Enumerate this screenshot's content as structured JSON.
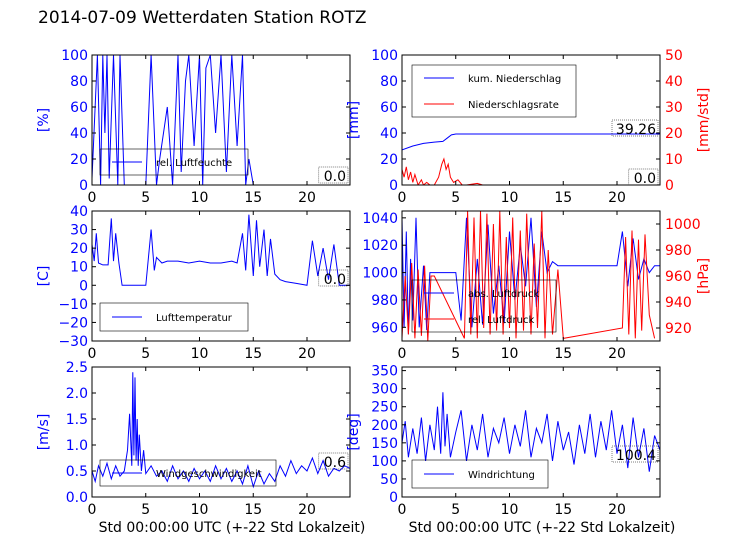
{
  "title": "2014-07-09 Wetterdaten Station ROTZ",
  "colors": {
    "primary": "#0000ff",
    "secondary": "#ff0000",
    "frame": "#000000"
  },
  "chart_data": [
    {
      "id": "humidity",
      "type": "line",
      "ylabel": "[%]",
      "xlabel": "",
      "xlim": [
        0,
        24
      ],
      "ylim": [
        0,
        100
      ],
      "xticks": [
        0,
        5,
        10,
        15,
        20
      ],
      "yticks": [
        0,
        20,
        40,
        60,
        80,
        100
      ],
      "legend": {
        "placement": "bottom-center",
        "entries": [
          {
            "label": "rel. Luftfeuchte",
            "color": "#0000ff"
          }
        ]
      },
      "annotation": "0.0",
      "series": [
        {
          "name": "rel. Luftfeuchte",
          "color": "#0000ff",
          "x": [
            0,
            0.5,
            0.8,
            1,
            1.2,
            1.4,
            1.6,
            2,
            2.4,
            2.6,
            3,
            5,
            5.5,
            6,
            6.3,
            7,
            7.5,
            8,
            8.3,
            8.7,
            9,
            9.5,
            10,
            10.3,
            10.6,
            11,
            11.5,
            12,
            12.5,
            13,
            13.5,
            14,
            14.3,
            14.6,
            15,
            20,
            24
          ],
          "y": [
            5,
            100,
            0,
            100,
            40,
            100,
            5,
            100,
            0,
            100,
            0,
            0,
            100,
            0,
            20,
            60,
            0,
            100,
            10,
            80,
            100,
            30,
            100,
            0,
            90,
            100,
            40,
            100,
            10,
            100,
            30,
            100,
            0,
            20,
            0,
            0,
            0
          ]
        }
      ]
    },
    {
      "id": "precipitation",
      "type": "line",
      "ylabel": "[mm]",
      "ylabel2": "[mm/std]",
      "xlabel": "",
      "xlim": [
        0,
        24
      ],
      "ylim": [
        0,
        100
      ],
      "ylim2": [
        0,
        50
      ],
      "xticks": [
        0,
        5,
        10,
        15,
        20
      ],
      "yticks": [
        0,
        20,
        40,
        60,
        80,
        100
      ],
      "yticks2": [
        0,
        10,
        20,
        30,
        40,
        50
      ],
      "legend": {
        "placement": "top-left",
        "entries": [
          {
            "label": "kum. Niederschlag",
            "color": "#0000ff"
          },
          {
            "label": "Niederschlagsrate",
            "color": "#ff0000"
          }
        ]
      },
      "annotations": [
        "39.26",
        "0.0"
      ],
      "series": [
        {
          "name": "kum. Niederschlag",
          "axis": "left",
          "color": "#0000ff",
          "x": [
            0,
            1,
            2,
            3,
            3.8,
            4.2,
            4.6,
            5,
            6,
            8,
            24
          ],
          "y": [
            27,
            30,
            32,
            33,
            33.5,
            36,
            38.5,
            39.2,
            39.26,
            39.26,
            39.26
          ]
        },
        {
          "name": "Niederschlagsrate",
          "axis": "right",
          "color": "#ff0000",
          "x": [
            0,
            0.2,
            0.4,
            0.6,
            0.8,
            1,
            1.2,
            1.5,
            1.8,
            2,
            2.3,
            2.6,
            3,
            3.4,
            3.7,
            3.9,
            4.1,
            4.3,
            4.5,
            4.8,
            5.2,
            5.6,
            6,
            7,
            7.5,
            8,
            24
          ],
          "y": [
            6,
            3,
            7,
            2,
            5,
            1,
            4,
            0,
            2,
            0,
            1,
            0,
            0,
            3,
            8,
            10,
            6,
            8,
            3,
            1,
            2,
            0,
            0,
            0.6,
            0,
            0,
            0
          ]
        }
      ]
    },
    {
      "id": "temperature",
      "type": "line",
      "ylabel": "[C]",
      "xlabel": "",
      "xlim": [
        0,
        24
      ],
      "ylim": [
        -30,
        40
      ],
      "xticks": [
        0,
        5,
        10,
        15,
        20
      ],
      "yticks": [
        -30,
        -20,
        -10,
        0,
        10,
        20,
        30,
        40
      ],
      "legend": {
        "placement": "bottom-left",
        "entries": [
          {
            "label": "Lufttemperatur",
            "color": "#0000ff"
          }
        ]
      },
      "annotation": "0.0",
      "series": [
        {
          "name": "Lufttemperatur",
          "color": "#0000ff",
          "x": [
            0,
            0.2,
            0.4,
            0.6,
            1,
            1.5,
            1.8,
            2,
            2.2,
            2.5,
            2.8,
            3,
            4,
            5,
            5.5,
            5.8,
            6,
            6.5,
            7,
            8,
            9,
            10,
            11,
            12,
            13,
            13.5,
            14,
            14.3,
            14.6,
            15,
            15.3,
            15.6,
            16,
            16.3,
            16.6,
            17,
            17.5,
            18,
            19,
            20,
            20.5,
            21,
            21.5,
            22,
            22.5,
            23,
            24
          ],
          "y": [
            22,
            13,
            28,
            12,
            11,
            11,
            36,
            13,
            28,
            12,
            0,
            0,
            0,
            0,
            30,
            8,
            15,
            12,
            13,
            13,
            12,
            13,
            12,
            12,
            13,
            12,
            28,
            8,
            38,
            5,
            35,
            10,
            30,
            5,
            25,
            6,
            3,
            2,
            1,
            0,
            24,
            5,
            20,
            3,
            22,
            0,
            0
          ]
        }
      ]
    },
    {
      "id": "pressure",
      "type": "line",
      "ylabel": "",
      "ylabel2": "[hPa]",
      "xlabel": "",
      "xlim": [
        0,
        24
      ],
      "ylim": [
        950,
        1045
      ],
      "ylim2": [
        910,
        1010
      ],
      "xticks": [
        0,
        5,
        10,
        15,
        20
      ],
      "yticks": [
        960,
        980,
        1000,
        1020,
        1040
      ],
      "yticks2": [
        920,
        940,
        960,
        980,
        1000
      ],
      "legend": {
        "placement": "bottom-left",
        "entries": [
          {
            "label": "abs. Luftdruck",
            "color": "#0000ff"
          },
          {
            "label": "rel. Luftdruck",
            "color": "#ff0000"
          }
        ]
      },
      "series": [
        {
          "name": "abs. Luftdruck",
          "axis": "left",
          "color": "#0000ff",
          "x": [
            0,
            0.2,
            0.4,
            0.6,
            0.8,
            1,
            1.3,
            1.6,
            2,
            2.3,
            2.6,
            3,
            5,
            5.5,
            6,
            6.5,
            7,
            7.5,
            8,
            8.5,
            9,
            9.5,
            10,
            10.5,
            11,
            11.5,
            12,
            12.5,
            13,
            13.5,
            14,
            14.5,
            20,
            20.5,
            21,
            21.5,
            22,
            22.5,
            23,
            23.5,
            24
          ],
          "y": [
            1040,
            960,
            1030,
            955,
            1010,
            965,
            1040,
            960,
            1005,
            958,
            1000,
            1000,
            1000,
            965,
            1040,
            960,
            1010,
            962,
            1035,
            970,
            1005,
            963,
            1030,
            980,
            1020,
            990,
            1040,
            975,
            1030,
            1000,
            1008,
            1005,
            1005,
            1030,
            990,
            1025,
            995,
            1010,
            1000,
            1005,
            1005
          ]
        },
        {
          "name": "rel. Luftdruck",
          "axis": "right",
          "color": "#ff0000",
          "x": [
            0,
            0.3,
            0.6,
            0.9,
            1.2,
            1.5,
            1.8,
            2.1,
            2.4,
            2.7,
            3,
            5.8,
            6.1,
            6.4,
            6.7,
            7,
            7.3,
            7.6,
            7.9,
            8.2,
            8.5,
            8.8,
            9.1,
            9.4,
            9.7,
            10,
            10.3,
            10.6,
            11,
            11.3,
            11.6,
            12,
            12.3,
            12.6,
            13,
            13.3,
            13.6,
            14,
            14.5,
            15,
            20.5,
            20.8,
            21.1,
            21.4,
            21.7,
            22,
            22.3,
            22.6,
            23,
            23.5
          ],
          "y": [
            912,
            960,
            915,
            970,
            912,
            965,
            914,
            968,
            910,
            960,
            960,
            912,
            1010,
            915,
            1005,
            912,
            1010,
            920,
            1008,
            915,
            1000,
            918,
            1010,
            915,
            990,
            920,
            1005,
            912,
            995,
            918,
            1008,
            915,
            985,
            920,
            1010,
            912,
            980,
            915,
            965,
            912,
            920,
            990,
            915,
            995,
            912,
            988,
            918,
            992,
            930,
            912
          ]
        }
      ]
    },
    {
      "id": "wind-speed",
      "type": "line",
      "ylabel": "[m/s]",
      "xlabel": "Std 00:00:00 UTC (+-22 Std Lokalzeit)",
      "xlim": [
        0,
        24
      ],
      "ylim": [
        0,
        2.5
      ],
      "xticks": [
        0,
        5,
        10,
        15,
        20
      ],
      "yticks": [
        0.0,
        0.5,
        1.0,
        1.5,
        2.0,
        2.5
      ],
      "yticklabels": [
        "0.0",
        "0.5",
        "1.0",
        "1.5",
        "2.0",
        "2.5"
      ],
      "legend": {
        "placement": "bottom-center",
        "entries": [
          {
            "label": "Windgeschwindigkeit",
            "color": "#0000ff"
          }
        ]
      },
      "annotation": "0.6",
      "series": [
        {
          "name": "Windgeschwindigkeit",
          "color": "#0000ff",
          "x": [
            0,
            0.3,
            0.6,
            1,
            1.4,
            1.8,
            2.2,
            2.6,
            3,
            3.3,
            3.5,
            3.7,
            3.8,
            3.9,
            4,
            4.1,
            4.2,
            4.3,
            4.4,
            4.6,
            4.8,
            5,
            5.5,
            6,
            6.5,
            7,
            7.5,
            8,
            8.5,
            9,
            9.5,
            10,
            10.5,
            11,
            11.5,
            12,
            12.5,
            13,
            13.5,
            14,
            14.5,
            15,
            15.5,
            16,
            16.5,
            17,
            17.5,
            18,
            18.5,
            19,
            19.5,
            20,
            20.5,
            21,
            21.5,
            22,
            22.5,
            23,
            23.5,
            24
          ],
          "y": [
            0.5,
            0.3,
            0.6,
            0.4,
            0.65,
            0.35,
            0.6,
            0.4,
            0.5,
            0.9,
            1.6,
            0.6,
            2.4,
            0.8,
            2.3,
            0.7,
            1.5,
            0.6,
            1.2,
            0.5,
            0.9,
            0.45,
            0.6,
            0.4,
            0.5,
            0.3,
            0.6,
            0.35,
            0.5,
            0.3,
            0.55,
            0.35,
            0.5,
            0.3,
            0.6,
            0.35,
            0.55,
            0.3,
            0.5,
            0.25,
            0.6,
            0.2,
            0.5,
            0.25,
            0.45,
            0.3,
            0.6,
            0.4,
            0.7,
            0.45,
            0.6,
            0.5,
            0.75,
            0.45,
            0.7,
            0.4,
            0.55,
            0.5,
            0.6,
            0.55
          ]
        }
      ]
    },
    {
      "id": "wind-direction",
      "type": "line",
      "ylabel": "[deg]",
      "xlabel": "Std 00:00:00 UTC (+-22 Std Lokalzeit)",
      "xlim": [
        0,
        24
      ],
      "ylim": [
        0,
        360
      ],
      "xticks": [
        0,
        5,
        10,
        15,
        20
      ],
      "yticks": [
        0,
        50,
        100,
        150,
        200,
        250,
        300,
        350
      ],
      "legend": {
        "placement": "bottom-left",
        "entries": [
          {
            "label": "Windrichtung",
            "color": "#0000ff"
          }
        ]
      },
      "annotation": "100.4",
      "series": [
        {
          "name": "Windrichtung",
          "color": "#0000ff",
          "x": [
            0,
            0.3,
            0.6,
            1,
            1.4,
            1.8,
            2.2,
            2.6,
            3,
            3.3,
            3.6,
            3.8,
            4,
            4.2,
            4.5,
            5,
            5.5,
            6,
            6.5,
            7,
            7.5,
            8,
            8.5,
            9,
            9.5,
            10,
            10.5,
            11,
            11.5,
            12,
            12.5,
            13,
            13.5,
            14,
            14.5,
            15,
            15.5,
            16,
            16.5,
            17,
            17.5,
            18,
            18.5,
            19,
            19.5,
            20,
            20.5,
            21,
            21.5,
            22,
            22.5,
            23,
            23.5,
            24
          ],
          "y": [
            150,
            210,
            110,
            190,
            120,
            220,
            100,
            200,
            130,
            250,
            120,
            290,
            140,
            230,
            110,
            180,
            240,
            100,
            200,
            130,
            230,
            110,
            190,
            150,
            220,
            120,
            200,
            140,
            240,
            110,
            190,
            150,
            230,
            100,
            210,
            130,
            180,
            90,
            200,
            120,
            230,
            110,
            210,
            130,
            240,
            120,
            200,
            80,
            220,
            110,
            190,
            70,
            170,
            130
          ]
        }
      ]
    }
  ]
}
